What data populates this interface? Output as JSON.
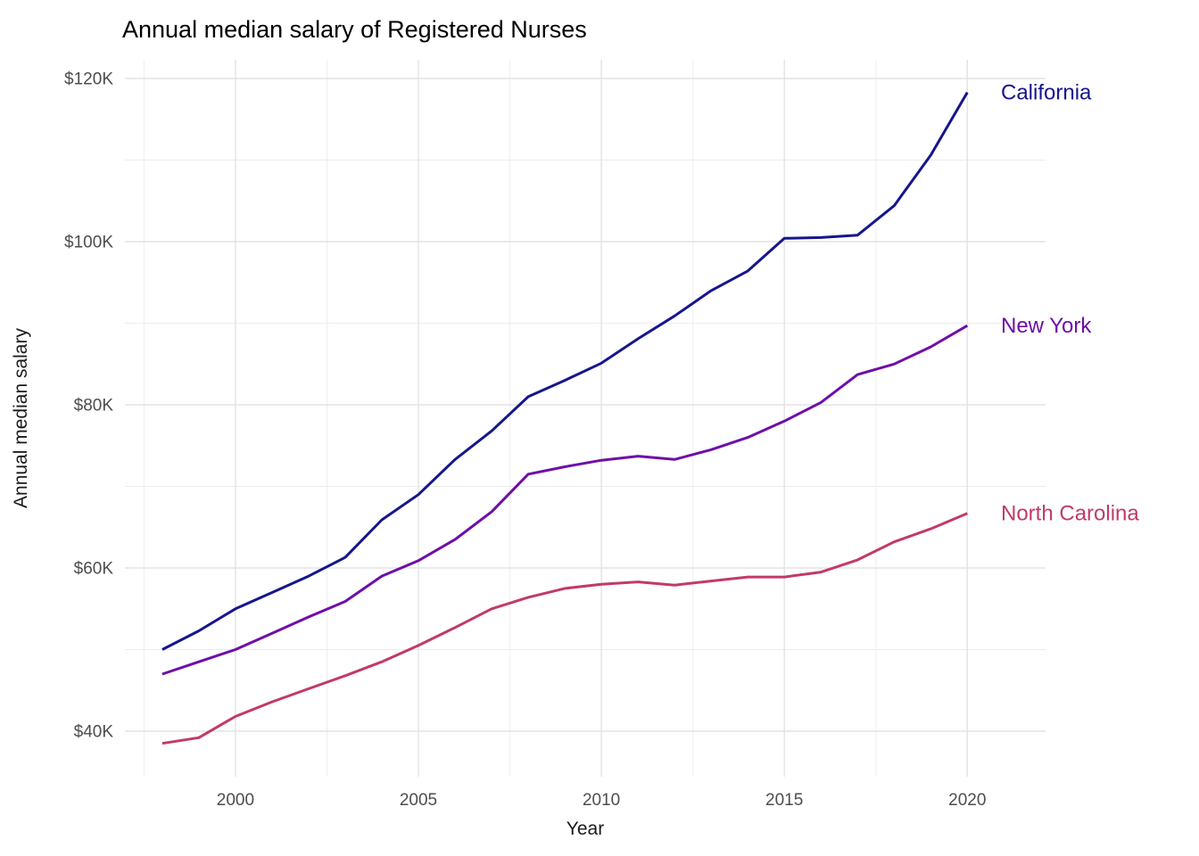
{
  "figure": {
    "title": "Annual median salary of Registered Nurses",
    "x_axis_title": "Year",
    "y_axis_title": "Annual median salary"
  },
  "chart_data": {
    "type": "line",
    "title": "Annual median salary of Registered Nurses",
    "xlabel": "Year",
    "ylabel": "Annual median salary",
    "units": "USD thousands per year",
    "x": [
      1998,
      1999,
      2000,
      2001,
      2002,
      2003,
      2004,
      2005,
      2006,
      2007,
      2008,
      2009,
      2010,
      2011,
      2012,
      2013,
      2014,
      2015,
      2016,
      2017,
      2018,
      2019,
      2020
    ],
    "series": [
      {
        "name": "California",
        "color": "#16168c",
        "values_usd_thousands": [
          50.0,
          52.3,
          55.0,
          57.0,
          59.0,
          61.3,
          65.9,
          69.0,
          73.3,
          76.8,
          81.0,
          83.0,
          85.1,
          88.1,
          90.9,
          94.0,
          96.4,
          100.4,
          100.5,
          100.8,
          104.4,
          110.6,
          118.3
        ]
      },
      {
        "name": "New York",
        "color": "#6e0fa8",
        "values_usd_thousands": [
          47.0,
          48.5,
          50.0,
          52.0,
          54.0,
          55.9,
          59.0,
          60.9,
          63.5,
          66.9,
          71.5,
          72.4,
          73.2,
          73.7,
          73.3,
          74.5,
          76.0,
          78.0,
          80.3,
          83.7,
          85.0,
          87.1,
          89.7
        ]
      },
      {
        "name": "North Carolina",
        "color": "#c23a66",
        "values_usd_thousands": [
          38.5,
          39.2,
          41.8,
          43.6,
          45.2,
          46.8,
          48.5,
          50.5,
          52.7,
          55.0,
          56.4,
          57.5,
          58.0,
          58.3,
          57.9,
          58.4,
          58.9,
          58.9,
          59.5,
          61.0,
          63.2,
          64.8,
          66.7
        ]
      }
    ],
    "y_ticks": [
      {
        "value": 40,
        "label": "$40K"
      },
      {
        "value": 60,
        "label": "$60K"
      },
      {
        "value": 80,
        "label": "$80K"
      },
      {
        "value": 100,
        "label": "$100K"
      },
      {
        "value": 120,
        "label": "$120K"
      }
    ],
    "y_minor_ticks": [
      50,
      70,
      90,
      110
    ],
    "x_ticks": [
      {
        "value": 2000,
        "label": "2000"
      },
      {
        "value": 2005,
        "label": "2005"
      },
      {
        "value": 2010,
        "label": "2010"
      },
      {
        "value": 2015,
        "label": "2015"
      },
      {
        "value": 2020,
        "label": "2020"
      }
    ],
    "x_minor_ticks": [
      1997.5,
      2002.5,
      2007.5,
      2012.5,
      2017.5
    ],
    "xlim": [
      1996.9,
      2022.2
    ],
    "ylim": [
      34.4,
      122.3
    ],
    "grid": "major-and-minor, light grey on white, no axis lines",
    "legend": "direct labels at right end of lines, colored as series"
  },
  "styles": {
    "background_color": "#ffffff",
    "grid_major_color": "#e3e3e3",
    "grid_minor_color": "#ededed",
    "tick_text_color": "#4d4d4d",
    "axis_title_color": "#1a1a1a",
    "title_color": "#000000"
  }
}
